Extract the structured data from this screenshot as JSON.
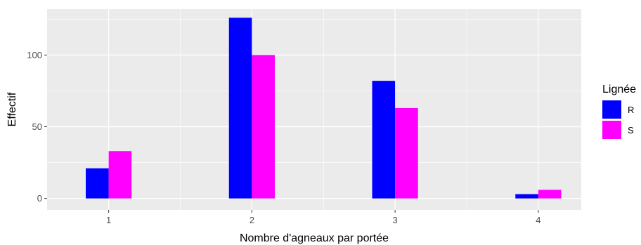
{
  "chart_data": {
    "type": "bar",
    "x_title": "Nombre d'agneaux par portée",
    "y_title": "Effectif",
    "categories": [
      1,
      2,
      3,
      4
    ],
    "x_ticks": [
      "1",
      "2",
      "3",
      "4"
    ],
    "y_ticks": [
      0,
      50,
      100
    ],
    "ylim": [
      -8,
      132
    ],
    "xlim": [
      0.57,
      4.3
    ],
    "bar_width": 0.16,
    "series": [
      {
        "name": "R",
        "color": "#0000FF",
        "values": [
          21,
          126,
          82,
          3
        ]
      },
      {
        "name": "S",
        "color": "#FF00FF",
        "values": [
          33,
          100,
          63,
          6
        ]
      }
    ],
    "legend": {
      "title": "Lignée",
      "position": "right"
    },
    "grid": true,
    "panel_background": "#EBEBEB",
    "grid_color": "#FFFFFF"
  }
}
